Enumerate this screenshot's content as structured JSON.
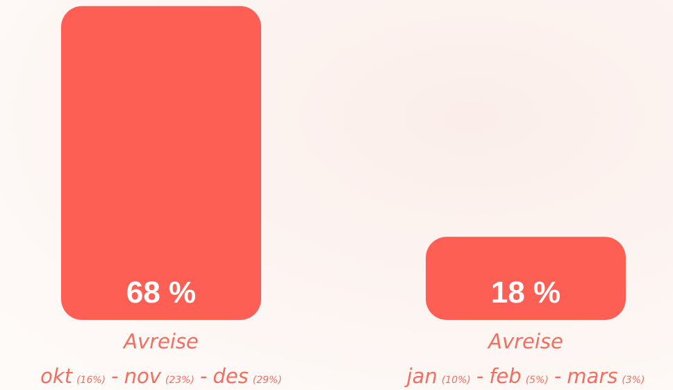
{
  "chart_data": {
    "type": "bar",
    "color": "#fe5f55",
    "values": [
      68,
      18
    ],
    "value_labels": [
      "68 %",
      "18 %"
    ],
    "categories": [
      "Avreise",
      "Avreise"
    ],
    "separator": "-",
    "breakdown": [
      [
        {
          "month": "okt",
          "share": "(16%)"
        },
        {
          "month": "nov",
          "share": "(23%)"
        },
        {
          "month": "des",
          "share": "(29%)"
        }
      ],
      [
        {
          "month": "jan",
          "share": "(10%)"
        },
        {
          "month": "feb",
          "share": "(5%)"
        },
        {
          "month": "mars",
          "share": "(3%)"
        }
      ]
    ]
  }
}
